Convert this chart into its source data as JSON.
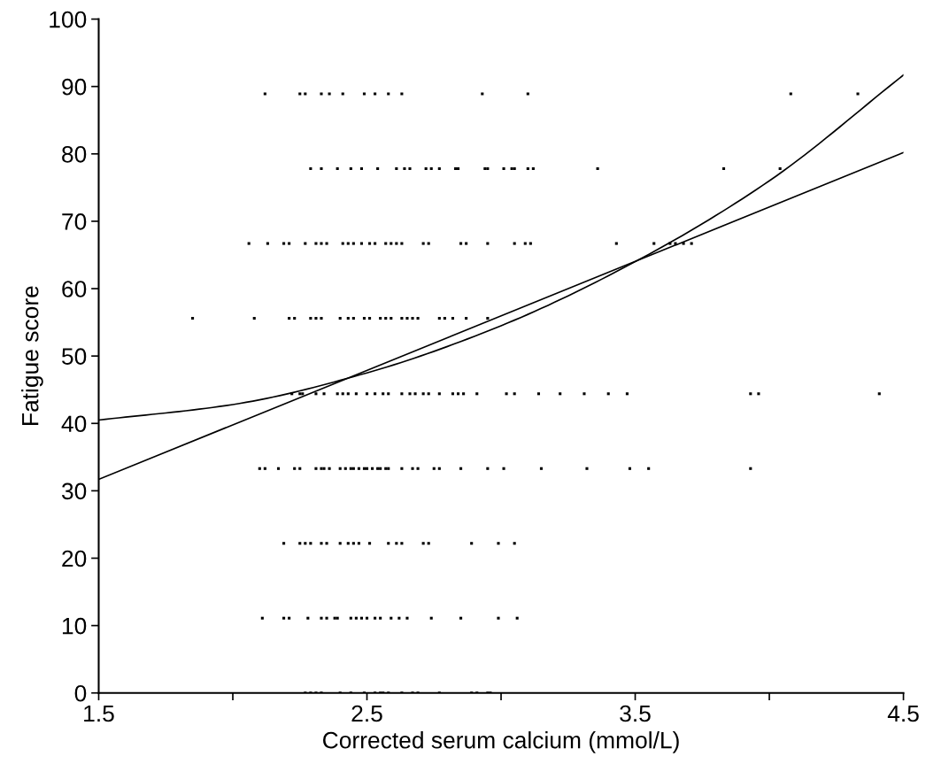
{
  "chart_data": {
    "type": "scatter",
    "xlabel": "Corrected serum calcium (mmol/L)",
    "ylabel": "Fatigue score",
    "xlim": [
      1.5,
      4.5
    ],
    "ylim": [
      0,
      100
    ],
    "xticks": [
      1.5,
      {
        "value": 2,
        "label": null
      },
      2.5,
      {
        "value": 3,
        "label": null
      },
      3.5,
      {
        "value": 4,
        "label": null
      },
      4.5
    ],
    "yticks": [
      0,
      10,
      20,
      30,
      40,
      50,
      60,
      70,
      80,
      90,
      100
    ],
    "grid": false,
    "legend": false,
    "marker": "square",
    "series": [
      {
        "color": "#000000",
        "x": [
          2.12,
          2.25,
          2.27,
          2.33,
          2.36,
          2.41,
          2.49,
          2.53,
          2.58,
          2.63,
          2.93,
          3.1,
          4.08,
          4.33,
          2.29,
          2.33,
          2.39,
          2.44,
          2.48,
          2.54,
          2.61,
          2.64,
          2.66,
          2.72,
          2.74,
          2.77,
          2.83,
          2.84,
          2.94,
          2.95,
          3.01,
          3.04,
          3.05,
          3.1,
          3.12,
          3.36,
          3.83,
          4.04,
          2.06,
          2.13,
          2.19,
          2.21,
          2.27,
          2.31,
          2.33,
          2.35,
          2.41,
          2.43,
          2.45,
          2.48,
          2.51,
          2.53,
          2.57,
          2.59,
          2.61,
          2.63,
          2.71,
          2.73,
          2.85,
          2.87,
          2.95,
          3.05,
          3.09,
          3.11,
          3.43,
          3.57,
          3.63,
          3.65,
          3.68,
          3.71,
          1.85,
          2.08,
          2.21,
          2.23,
          2.29,
          2.31,
          2.33,
          2.4,
          2.43,
          2.45,
          2.49,
          2.51,
          2.55,
          2.57,
          2.59,
          2.63,
          2.65,
          2.67,
          2.69,
          2.77,
          2.79,
          2.82,
          2.87,
          2.95,
          2.22,
          2.25,
          2.26,
          2.31,
          2.34,
          2.39,
          2.41,
          2.43,
          2.46,
          2.5,
          2.53,
          2.56,
          2.58,
          2.63,
          2.66,
          2.68,
          2.71,
          2.73,
          2.77,
          2.82,
          2.84,
          2.86,
          2.91,
          3.02,
          3.05,
          3.14,
          3.22,
          3.31,
          3.4,
          3.47,
          3.93,
          3.96,
          4.41,
          2.1,
          2.12,
          2.17,
          2.23,
          2.25,
          2.31,
          2.33,
          2.34,
          2.36,
          2.4,
          2.42,
          2.44,
          2.45,
          2.47,
          2.49,
          2.5,
          2.52,
          2.54,
          2.55,
          2.57,
          2.58,
          2.63,
          2.67,
          2.69,
          2.75,
          2.77,
          2.85,
          2.95,
          3.01,
          3.15,
          3.32,
          3.48,
          3.55,
          3.93,
          2.19,
          2.25,
          2.27,
          2.29,
          2.33,
          2.35,
          2.4,
          2.43,
          2.45,
          2.47,
          2.51,
          2.58,
          2.61,
          2.63,
          2.71,
          2.73,
          2.89,
          2.99,
          3.05,
          2.11,
          2.19,
          2.21,
          2.28,
          2.33,
          2.35,
          2.38,
          2.39,
          2.44,
          2.46,
          2.48,
          2.5,
          2.53,
          2.55,
          2.59,
          2.62,
          2.65,
          2.74,
          2.85,
          2.99,
          3.06,
          2.27,
          2.29,
          2.31,
          2.33,
          2.4,
          2.44,
          2.49,
          2.53,
          2.55,
          2.56,
          2.58,
          2.63,
          2.67,
          2.69,
          2.77,
          2.89,
          2.91,
          2.95,
          2.96
        ],
        "values": [
          88.9,
          88.9,
          88.9,
          88.9,
          88.9,
          88.9,
          88.9,
          88.9,
          88.9,
          88.9,
          88.9,
          88.9,
          88.9,
          88.9,
          77.8,
          77.8,
          77.8,
          77.8,
          77.8,
          77.8,
          77.8,
          77.8,
          77.8,
          77.8,
          77.8,
          77.8,
          77.8,
          77.8,
          77.8,
          77.8,
          77.8,
          77.8,
          77.8,
          77.8,
          77.8,
          77.8,
          77.8,
          77.8,
          66.7,
          66.7,
          66.7,
          66.7,
          66.7,
          66.7,
          66.7,
          66.7,
          66.7,
          66.7,
          66.7,
          66.7,
          66.7,
          66.7,
          66.7,
          66.7,
          66.7,
          66.7,
          66.7,
          66.7,
          66.7,
          66.7,
          66.7,
          66.7,
          66.7,
          66.7,
          66.7,
          66.7,
          66.7,
          66.7,
          66.7,
          66.7,
          55.6,
          55.6,
          55.6,
          55.6,
          55.6,
          55.6,
          55.6,
          55.6,
          55.6,
          55.6,
          55.6,
          55.6,
          55.6,
          55.6,
          55.6,
          55.6,
          55.6,
          55.6,
          55.6,
          55.6,
          55.6,
          55.6,
          55.6,
          55.6,
          44.4,
          44.4,
          44.4,
          44.4,
          44.4,
          44.4,
          44.4,
          44.4,
          44.4,
          44.4,
          44.4,
          44.4,
          44.4,
          44.4,
          44.4,
          44.4,
          44.4,
          44.4,
          44.4,
          44.4,
          44.4,
          44.4,
          44.4,
          44.4,
          44.4,
          44.4,
          44.4,
          44.4,
          44.4,
          44.4,
          44.4,
          44.4,
          44.4,
          33.3,
          33.3,
          33.3,
          33.3,
          33.3,
          33.3,
          33.3,
          33.3,
          33.3,
          33.3,
          33.3,
          33.3,
          33.3,
          33.3,
          33.3,
          33.3,
          33.3,
          33.3,
          33.3,
          33.3,
          33.3,
          33.3,
          33.3,
          33.3,
          33.3,
          33.3,
          33.3,
          33.3,
          33.3,
          33.3,
          33.3,
          33.3,
          33.3,
          33.3,
          22.2,
          22.2,
          22.2,
          22.2,
          22.2,
          22.2,
          22.2,
          22.2,
          22.2,
          22.2,
          22.2,
          22.2,
          22.2,
          22.2,
          22.2,
          22.2,
          22.2,
          22.2,
          22.2,
          11.1,
          11.1,
          11.1,
          11.1,
          11.1,
          11.1,
          11.1,
          11.1,
          11.1,
          11.1,
          11.1,
          11.1,
          11.1,
          11.1,
          11.1,
          11.1,
          11.1,
          11.1,
          11.1,
          11.1,
          11.1,
          0,
          0,
          0,
          0,
          0,
          0,
          0,
          0,
          0,
          0,
          0,
          0,
          0,
          0,
          0,
          0,
          0,
          0,
          0
        ]
      },
      {
        "type": "line",
        "color": "#000000",
        "marker": "none",
        "line_style": "solid",
        "x": [
          1.5,
          4.5
        ],
        "values": [
          31.7,
          80.2
        ]
      },
      {
        "type": "line",
        "color": "#000000",
        "marker": "none",
        "line_style": "solid",
        "x": [
          1.5,
          2.0,
          2.5,
          3.0,
          3.5,
          4.0,
          4.5
        ],
        "values": [
          40.5,
          42.8,
          47.5,
          54.5,
          64.0,
          76.0,
          91.7
        ]
      }
    ]
  }
}
